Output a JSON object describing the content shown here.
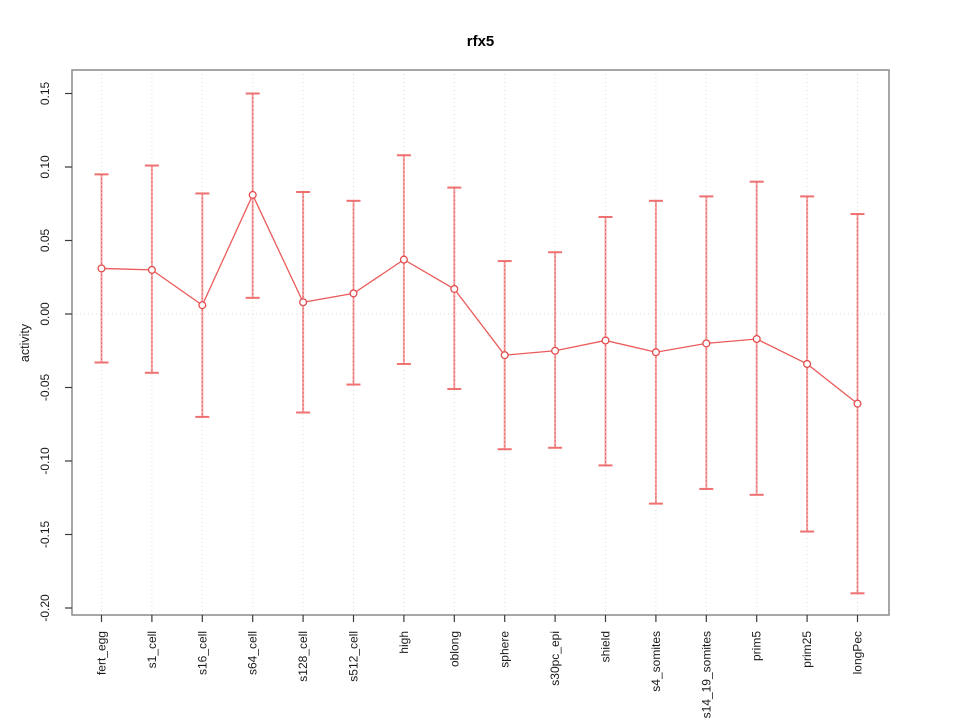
{
  "chart_data": {
    "type": "line",
    "title": "rfx5",
    "xlabel": "",
    "ylabel": "activity",
    "categories": [
      "fert_egg",
      "s1_cell",
      "s16_cell",
      "s64_cell",
      "s128_cell",
      "s512_cell",
      "high",
      "oblong",
      "sphere",
      "s30pc_epi",
      "shield",
      "s4_somites",
      "s14_19_somites",
      "prim5",
      "prim25",
      "longPec"
    ],
    "series": [
      {
        "name": "activity",
        "means": [
          0.031,
          0.03,
          0.006,
          0.081,
          0.008,
          0.014,
          0.037,
          0.017,
          -0.028,
          -0.025,
          -0.018,
          -0.026,
          -0.02,
          -0.017,
          -0.034,
          -0.061
        ],
        "upper": [
          0.095,
          0.101,
          0.082,
          0.15,
          0.083,
          0.077,
          0.108,
          0.086,
          0.036,
          0.042,
          0.066,
          0.077,
          0.08,
          0.09,
          0.08,
          0.068
        ],
        "lower": [
          -0.033,
          -0.04,
          -0.07,
          0.011,
          -0.067,
          -0.048,
          -0.034,
          -0.051,
          -0.092,
          -0.091,
          -0.103,
          -0.129,
          -0.119,
          -0.123,
          -0.148,
          -0.19
        ]
      }
    ],
    "yticks": [
      "0.15",
      "0.10",
      "0.05",
      "0.00",
      "-0.05",
      "-0.10",
      "-0.15",
      "-0.20"
    ],
    "ylim": [
      -0.205,
      0.166
    ],
    "zero_reference_line": 0,
    "grid": {
      "vertical_per_category": true,
      "horizontal_at_zero": true,
      "style": "dotted"
    },
    "legend_position": "none",
    "point_style": "open-circle",
    "error_caps": true,
    "colors": {
      "line": "#ec5b5b",
      "point_stroke": "#e34c4c",
      "error_bar": "#f5a2a2",
      "error_bar_dots": "#e36060",
      "error_cap": "#ee7070",
      "grid": "#dcdcdc",
      "box": "#8a8a8a",
      "tick": "#3a3a3a",
      "text": "#1a1a1a"
    }
  }
}
